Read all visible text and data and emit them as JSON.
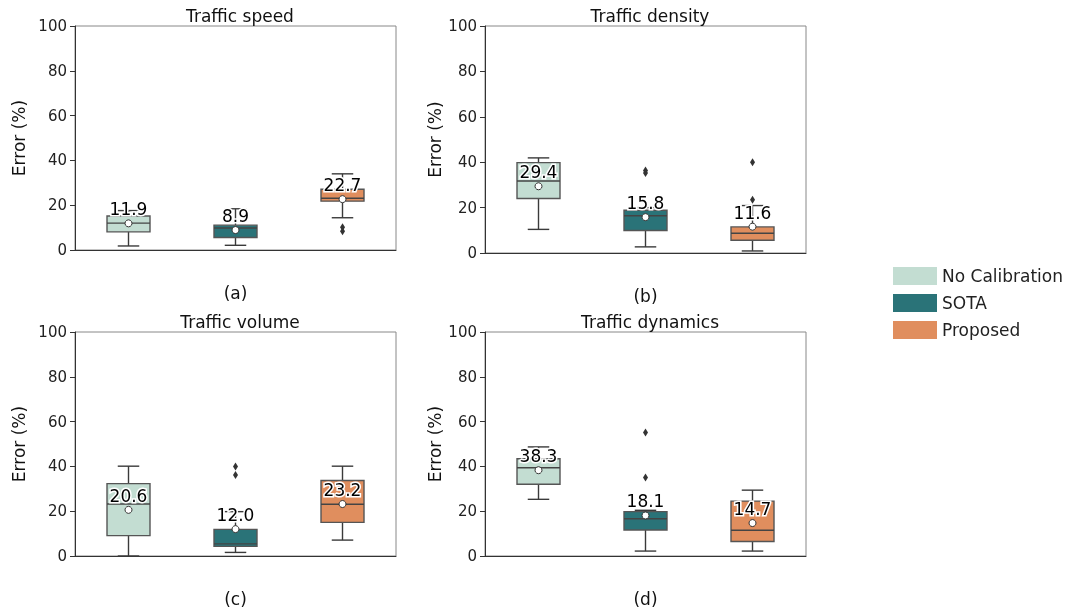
{
  "chart_data": [
    {
      "type": "box",
      "title": "Traffic speed",
      "xlabel": "(a)",
      "ylabel": "Error (%)",
      "categories": [
        null,
        null,
        null
      ],
      "ylim": [
        0,
        100
      ],
      "yticks": [
        0,
        20,
        40,
        60,
        80,
        100
      ],
      "tick_labels": "y",
      "series": [
        {
          "color": "#c3ddd2",
          "boxes": [
            {
              "low": 1.8,
              "q1": 8.1,
              "median": 12.0,
              "q3": 15.2,
              "high": 17.6,
              "mean": 11.9
            },
            null,
            null
          ],
          "value_labels": [
            "11.9",
            null,
            null
          ]
        },
        {
          "color": "#2a7378",
          "boxes": [
            null,
            {
              "low": 2.1,
              "q1": 5.6,
              "median": 9.8,
              "q3": 11.1,
              "high": 18.4,
              "mean": 8.9
            },
            null
          ],
          "value_labels": [
            null,
            "8.9",
            null
          ]
        },
        {
          "color": "#e08e5e",
          "boxes": [
            null,
            null,
            {
              "low": 14.4,
              "q1": 21.8,
              "median": 23.1,
              "q3": 27.1,
              "high": 34.0,
              "mean": 22.7,
              "outliers": [
                10.2,
                8.4
              ]
            }
          ],
          "value_labels": [
            null,
            null,
            "22.7"
          ]
        }
      ]
    },
    {
      "type": "box",
      "title": "Traffic density",
      "xlabel": "(b)",
      "ylabel": "Error (%)",
      "categories": [
        null,
        null,
        null
      ],
      "ylim": [
        0,
        100
      ],
      "yticks": [
        0,
        20,
        40,
        60,
        80,
        100
      ],
      "tick_labels": "y",
      "legend": "right",
      "series": [
        {
          "name": "No Calibration",
          "color": "#c3ddd2",
          "boxes": [
            {
              "low": 10.4,
              "q1": 24.0,
              "median": 31.7,
              "q3": 39.8,
              "high": 41.9,
              "mean": 29.4
            },
            null,
            null
          ],
          "value_labels": [
            "29.4",
            null,
            null
          ]
        },
        {
          "name": "SOTA",
          "color": "#2a7378",
          "boxes": [
            null,
            {
              "low": 2.7,
              "q1": 9.9,
              "median": 16.4,
              "q3": 18.8,
              "high": 20.0,
              "mean": 15.8,
              "outliers": [
                36.3,
                35.2
              ]
            },
            null
          ],
          "value_labels": [
            null,
            "15.8",
            null
          ]
        },
        {
          "name": "Proposed",
          "color": "#e08e5e",
          "boxes": [
            null,
            null,
            {
              "low": 0.9,
              "q1": 5.6,
              "median": 8.7,
              "q3": 11.5,
              "high": 20.9,
              "mean": 11.6,
              "outliers": [
                23.5,
                40.0
              ]
            }
          ],
          "value_labels": [
            null,
            null,
            "11.6"
          ]
        }
      ]
    },
    {
      "type": "box",
      "title": "Traffic volume",
      "xlabel": "(c)",
      "ylabel": "Error (%)",
      "categories": [
        null,
        null,
        null
      ],
      "ylim": [
        0,
        100
      ],
      "yticks": [
        0,
        20,
        40,
        60,
        80,
        100
      ],
      "tick_labels": "y",
      "series": [
        {
          "color": "#c3ddd2",
          "boxes": [
            {
              "low": 0,
              "q1": 9.1,
              "median": 23.2,
              "q3": 32.3,
              "high": 40.1,
              "mean": 20.6
            },
            null,
            null
          ],
          "value_labels": [
            "20.6",
            null,
            null
          ]
        },
        {
          "color": "#2a7378",
          "boxes": [
            null,
            {
              "low": 1.6,
              "q1": 4.3,
              "median": 5.4,
              "q3": 11.9,
              "high": 19.8,
              "mean": 12.0,
              "outliers": [
                40.0,
                36.2
              ]
            },
            null
          ],
          "value_labels": [
            null,
            "12.0",
            null
          ]
        },
        {
          "color": "#e08e5e",
          "boxes": [
            null,
            null,
            {
              "low": 7.1,
              "q1": 15.0,
              "median": 23.1,
              "q3": 33.7,
              "high": 40.1,
              "mean": 23.2
            }
          ],
          "value_labels": [
            null,
            null,
            "23.2"
          ]
        }
      ]
    },
    {
      "type": "box",
      "title": "Traffic dynamics",
      "xlabel": "(d)",
      "ylabel": "Error (%)",
      "categories": [
        null,
        null,
        null
      ],
      "ylim": [
        0,
        100
      ],
      "yticks": [
        0,
        20,
        40,
        60,
        80,
        100
      ],
      "tick_labels": "y",
      "series": [
        {
          "color": "#c3ddd2",
          "boxes": [
            {
              "low": 25.3,
              "q1": 32.0,
              "median": 39.4,
              "q3": 43.4,
              "high": 48.7,
              "mean": 38.3
            },
            null,
            null
          ],
          "value_labels": [
            "38.3",
            null,
            null
          ]
        },
        {
          "color": "#2a7378",
          "boxes": [
            null,
            {
              "low": 2.2,
              "q1": 11.6,
              "median": 16.6,
              "q3": 19.8,
              "high": 20.4,
              "mean": 18.1,
              "outliers": [
                55.1,
                35.1
              ]
            },
            null
          ],
          "value_labels": [
            null,
            "18.1",
            null
          ]
        },
        {
          "color": "#e08e5e",
          "boxes": [
            null,
            null,
            {
              "low": 2.2,
              "q1": 6.5,
              "median": 11.5,
              "q3": 24.5,
              "high": 29.4,
              "mean": 14.7
            }
          ],
          "value_labels": [
            null,
            null,
            "14.7"
          ]
        }
      ]
    }
  ]
}
